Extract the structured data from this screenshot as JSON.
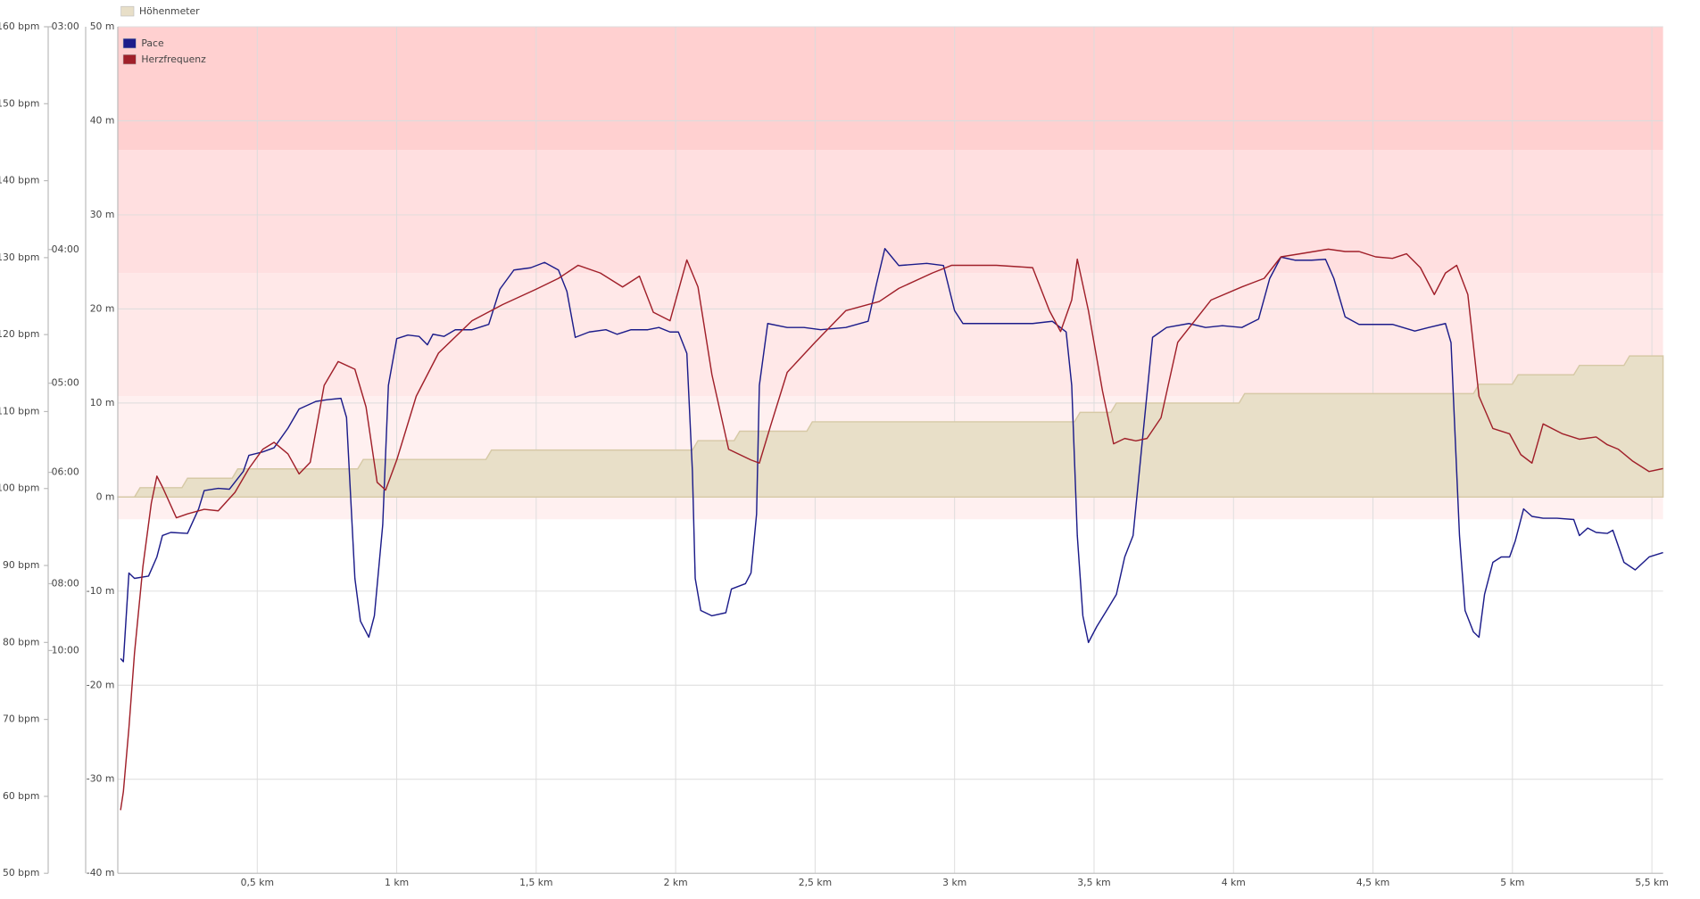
{
  "chart_data": {
    "type": "line",
    "xlim": [
      0,
      5.54
    ],
    "xticks": [
      {
        "value": 0.5,
        "label": "0,5 km"
      },
      {
        "value": 1,
        "label": "1 km"
      },
      {
        "value": 1.5,
        "label": "1,5 km"
      },
      {
        "value": 2,
        "label": "2 km"
      },
      {
        "value": 2.5,
        "label": "2,5 km"
      },
      {
        "value": 3,
        "label": "3 km"
      },
      {
        "value": 3.5,
        "label": "3,5 km"
      },
      {
        "value": 4,
        "label": "4 km"
      },
      {
        "value": 4.5,
        "label": "4,5 km"
      },
      {
        "value": 5,
        "label": "5 km"
      },
      {
        "value": 5.5,
        "label": "5,5 km"
      }
    ],
    "ylim": [
      50,
      160
    ],
    "yticks": [
      {
        "value": 50,
        "label": "50 bpm"
      },
      {
        "value": 60,
        "label": "60 bpm"
      },
      {
        "value": 70,
        "label": "70 bpm"
      },
      {
        "value": 80,
        "label": "80 bpm"
      },
      {
        "value": 90,
        "label": "90 bpm"
      },
      {
        "value": 100,
        "label": "100 bpm"
      },
      {
        "value": 110,
        "label": "110 bpm"
      },
      {
        "value": 120,
        "label": "120 bpm"
      },
      {
        "value": 130,
        "label": "130 bpm"
      },
      {
        "value": 140,
        "label": "140 bpm"
      },
      {
        "value": 150,
        "label": "150 bpm"
      },
      {
        "value": 160,
        "label": "160 bpm"
      }
    ],
    "y2lim": [
      -40,
      50
    ],
    "y2ticks": [
      {
        "value": -40,
        "label": "-40 m"
      },
      {
        "value": -30,
        "label": "-30 m"
      },
      {
        "value": -20,
        "label": "-20 m"
      },
      {
        "value": -10,
        "label": "-10 m"
      },
      {
        "value": 0,
        "label": "0 m"
      },
      {
        "value": 10,
        "label": "10 m"
      },
      {
        "value": 20,
        "label": "20 m"
      },
      {
        "value": 30,
        "label": "30 m"
      },
      {
        "value": 40,
        "label": "40 m"
      },
      {
        "value": 50,
        "label": "50 m"
      }
    ],
    "y3lim": [
      1,
      20
    ],
    "y3ticks": [
      {
        "value": 20,
        "label": "03:00"
      },
      {
        "value": 15,
        "label": "04:00"
      },
      {
        "value": 12,
        "label": "05:00"
      },
      {
        "value": 10,
        "label": "06:00"
      },
      {
        "value": 7.5,
        "label": "08:00"
      },
      {
        "value": 6,
        "label": "10:00"
      }
    ],
    "grid": true,
    "zones": [
      {
        "from": 96,
        "to": 112,
        "color": "#fff0f0"
      },
      {
        "from": 112,
        "to": 128,
        "color": "#ffe8e8"
      },
      {
        "from": 128,
        "to": 144,
        "color": "#ffdfe0"
      },
      {
        "from": 144,
        "to": 160,
        "color": "#ffd0d0"
      }
    ],
    "series": [
      {
        "name": "Höhenmeter",
        "color": "#e8dfc8",
        "axis": "y2",
        "kind": "area",
        "x": [
          0,
          0.06,
          0.08,
          0.23,
          0.25,
          0.41,
          0.43,
          0.86,
          0.88,
          1.32,
          1.34,
          2.06,
          2.08,
          2.21,
          2.23,
          2.47,
          2.49,
          3.43,
          3.45,
          3.56,
          3.58,
          4.02,
          4.04,
          4.86,
          4.88,
          5.0,
          5.02,
          5.22,
          5.24,
          5.4,
          5.42,
          5.54
        ],
        "values": [
          0,
          0,
          1,
          1,
          2,
          2,
          3,
          3,
          4,
          4,
          5,
          5,
          6,
          6,
          7,
          7,
          8,
          8,
          9,
          9,
          10,
          10,
          11,
          11,
          12,
          12,
          13,
          13,
          14,
          14,
          15,
          15
        ]
      },
      {
        "name": "Pace",
        "color": "#1c1c8a",
        "axis": "y3",
        "kind": "line",
        "x": [
          0.01,
          0.02,
          0.04,
          0.06,
          0.11,
          0.14,
          0.16,
          0.19,
          0.25,
          0.29,
          0.31,
          0.36,
          0.4,
          0.45,
          0.47,
          0.52,
          0.56,
          0.61,
          0.65,
          0.71,
          0.75,
          0.8,
          0.82,
          0.85,
          0.87,
          0.9,
          0.92,
          0.95,
          0.97,
          1.0,
          1.04,
          1.08,
          1.11,
          1.13,
          1.17,
          1.21,
          1.27,
          1.33,
          1.37,
          1.42,
          1.48,
          1.53,
          1.58,
          1.61,
          1.64,
          1.69,
          1.75,
          1.79,
          1.84,
          1.9,
          1.94,
          1.98,
          2.01,
          2.04,
          2.06,
          2.07,
          2.09,
          2.13,
          2.18,
          2.2,
          2.25,
          2.27,
          2.29,
          2.3,
          2.33,
          2.4,
          2.46,
          2.52,
          2.61,
          2.69,
          2.72,
          2.75,
          2.8,
          2.9,
          2.96,
          3.0,
          3.03,
          3.19,
          3.28,
          3.35,
          3.4,
          3.42,
          3.44,
          3.46,
          3.48,
          3.51,
          3.55,
          3.58,
          3.61,
          3.64,
          3.67,
          3.71,
          3.76,
          3.84,
          3.9,
          3.96,
          4.03,
          4.09,
          4.13,
          4.17,
          4.22,
          4.28,
          4.33,
          4.36,
          4.4,
          4.45,
          4.57,
          4.65,
          4.7,
          4.76,
          4.78,
          4.81,
          4.83,
          4.86,
          4.88,
          4.9,
          4.93,
          4.96,
          4.99,
          5.01,
          5.04,
          5.07,
          5.11,
          5.16,
          5.22,
          5.24,
          5.27,
          5.3,
          5.34,
          5.36,
          5.4,
          5.44,
          5.49,
          5.54
        ],
        "values": [
          5.82,
          5.75,
          7.74,
          7.62,
          7.67,
          8.1,
          8.58,
          8.65,
          8.63,
          9.18,
          9.59,
          9.64,
          9.62,
          10.02,
          10.38,
          10.46,
          10.55,
          10.99,
          11.42,
          11.59,
          11.63,
          11.66,
          11.23,
          7.62,
          6.66,
          6.3,
          6.78,
          8.82,
          11.95,
          13.0,
          13.08,
          13.05,
          12.86,
          13.1,
          13.05,
          13.2,
          13.2,
          13.32,
          14.11,
          14.54,
          14.59,
          14.71,
          14.54,
          14.06,
          13.03,
          13.15,
          13.2,
          13.1,
          13.2,
          13.2,
          13.25,
          13.15,
          13.15,
          12.67,
          10.02,
          7.62,
          6.9,
          6.78,
          6.85,
          7.38,
          7.5,
          7.74,
          9.06,
          11.95,
          13.34,
          13.25,
          13.25,
          13.2,
          13.25,
          13.39,
          14.23,
          15.02,
          14.64,
          14.69,
          14.64,
          13.63,
          13.34,
          13.34,
          13.34,
          13.39,
          13.15,
          11.95,
          8.58,
          6.78,
          6.18,
          6.54,
          6.95,
          7.26,
          8.1,
          8.58,
          10.5,
          13.03,
          13.25,
          13.34,
          13.25,
          13.29,
          13.25,
          13.44,
          14.35,
          14.83,
          14.76,
          14.76,
          14.78,
          14.35,
          13.49,
          13.32,
          13.32,
          13.17,
          13.25,
          13.34,
          12.91,
          8.58,
          6.9,
          6.42,
          6.3,
          7.26,
          7.98,
          8.1,
          8.1,
          8.46,
          9.18,
          9.01,
          8.97,
          8.97,
          8.94,
          8.58,
          8.75,
          8.65,
          8.63,
          8.7,
          7.98,
          7.81,
          8.1,
          8.2
        ]
      },
      {
        "name": "Herzfrequenz",
        "color": "#a0202a",
        "axis": "y",
        "kind": "line",
        "x": [
          0.01,
          0.02,
          0.04,
          0.06,
          0.09,
          0.12,
          0.14,
          0.16,
          0.21,
          0.25,
          0.31,
          0.36,
          0.42,
          0.47,
          0.52,
          0.56,
          0.61,
          0.65,
          0.69,
          0.74,
          0.79,
          0.85,
          0.89,
          0.93,
          0.96,
          1.0,
          1.07,
          1.15,
          1.27,
          1.38,
          1.5,
          1.58,
          1.65,
          1.73,
          1.81,
          1.87,
          1.92,
          1.98,
          2.04,
          2.08,
          2.13,
          2.19,
          2.27,
          2.3,
          2.34,
          2.4,
          2.5,
          2.61,
          2.73,
          2.8,
          2.92,
          2.99,
          3.15,
          3.28,
          3.34,
          3.38,
          3.42,
          3.44,
          3.48,
          3.53,
          3.57,
          3.61,
          3.65,
          3.69,
          3.74,
          3.8,
          3.92,
          4.03,
          4.11,
          4.17,
          4.24,
          4.34,
          4.4,
          4.45,
          4.51,
          4.57,
          4.62,
          4.67,
          4.72,
          4.76,
          4.8,
          4.84,
          4.88,
          4.93,
          4.99,
          5.03,
          5.07,
          5.11,
          5.18,
          5.24,
          5.3,
          5.34,
          5.38,
          5.43,
          5.49,
          5.54
        ],
        "values": [
          58.2,
          60.6,
          68.9,
          78.6,
          89.8,
          98.1,
          101.6,
          100.2,
          96.2,
          96.7,
          97.3,
          97.1,
          99.5,
          102.6,
          105.1,
          106.0,
          104.5,
          101.9,
          103.4,
          113.4,
          116.5,
          115.5,
          110.6,
          100.8,
          99.8,
          103.7,
          112.0,
          117.6,
          121.8,
          123.9,
          125.9,
          127.3,
          129.0,
          128.0,
          126.2,
          127.6,
          122.9,
          121.8,
          129.7,
          126.2,
          114.8,
          105.1,
          103.7,
          103.3,
          108.1,
          115.1,
          119.0,
          123.1,
          124.3,
          126.0,
          128.0,
          129.0,
          129.0,
          128.7,
          123.1,
          120.4,
          124.5,
          129.8,
          123.1,
          112.7,
          105.8,
          106.5,
          106.2,
          106.5,
          109.2,
          119.0,
          124.5,
          126.2,
          127.3,
          130.1,
          130.5,
          131.1,
          130.8,
          130.8,
          130.1,
          129.9,
          130.5,
          128.7,
          125.2,
          128.0,
          129.0,
          125.2,
          112.0,
          107.8,
          107.1,
          104.4,
          103.3,
          108.4,
          107.1,
          106.4,
          106.7,
          105.7,
          105.1,
          103.6,
          102.2,
          102.6
        ]
      }
    ]
  }
}
